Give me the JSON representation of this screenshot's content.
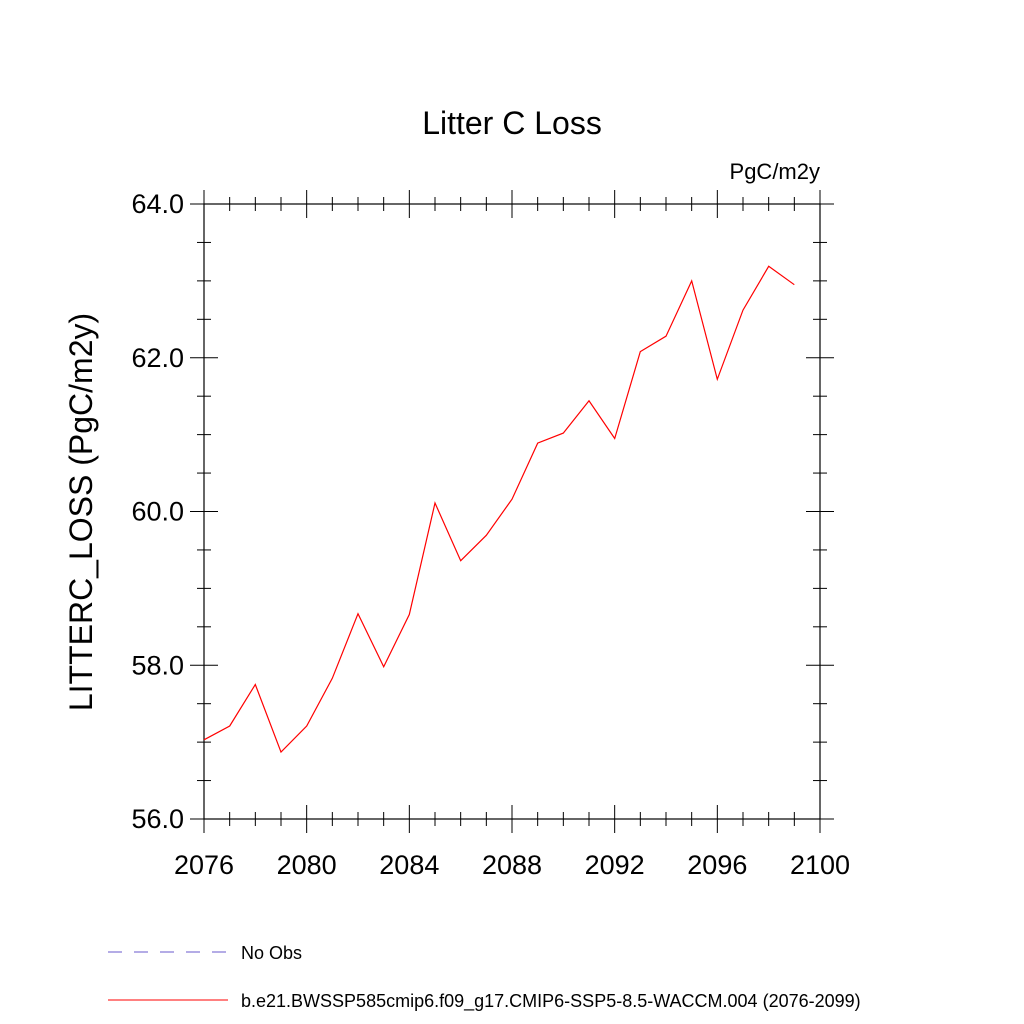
{
  "chart_data": {
    "type": "line",
    "title": "Litter C Loss",
    "units": "PgC/m2y",
    "ylabel": "LITTERC_LOSS  (PgC/m2y)",
    "xlabel": "",
    "xlim": [
      2076,
      2100
    ],
    "ylim": [
      56.0,
      64.0
    ],
    "x_ticks": [
      2076,
      2080,
      2084,
      2088,
      2092,
      2096,
      2100
    ],
    "x_tick_labels": [
      "2076",
      "2080",
      "2084",
      "2088",
      "2092",
      "2096",
      "2100"
    ],
    "y_ticks": [
      56.0,
      58.0,
      60.0,
      62.0,
      64.0
    ],
    "y_tick_labels": [
      "56.0",
      "58.0",
      "60.0",
      "62.0",
      "64.0"
    ],
    "grid": false,
    "legend_position": "bottom-left",
    "series": [
      {
        "name": "b.e21.BWSSP585cmip6.f09_g17.CMIP6-SSP5-8.5-WACCM.004 (2076-2099)",
        "color": "#ff0000",
        "style": "solid",
        "x": [
          2076,
          2077,
          2078,
          2079,
          2080,
          2081,
          2082,
          2083,
          2084,
          2085,
          2086,
          2087,
          2088,
          2089,
          2090,
          2091,
          2092,
          2093,
          2094,
          2095,
          2096,
          2097,
          2098,
          2099
        ],
        "values": [
          57.03,
          57.21,
          57.75,
          56.87,
          57.21,
          57.83,
          58.67,
          57.98,
          58.66,
          60.11,
          59.36,
          59.69,
          60.16,
          60.89,
          61.02,
          61.44,
          60.95,
          62.08,
          62.28,
          63.0,
          61.72,
          62.62,
          63.19,
          62.95
        ]
      }
    ],
    "legend": [
      {
        "label": "No Obs",
        "color": "#6a5acd",
        "style": "dashed"
      },
      {
        "label": "b.e21.BWSSP585cmip6.f09_g17.CMIP6-SSP5-8.5-WACCM.004 (2076-2099)",
        "color": "#ff0000",
        "style": "solid"
      }
    ]
  }
}
